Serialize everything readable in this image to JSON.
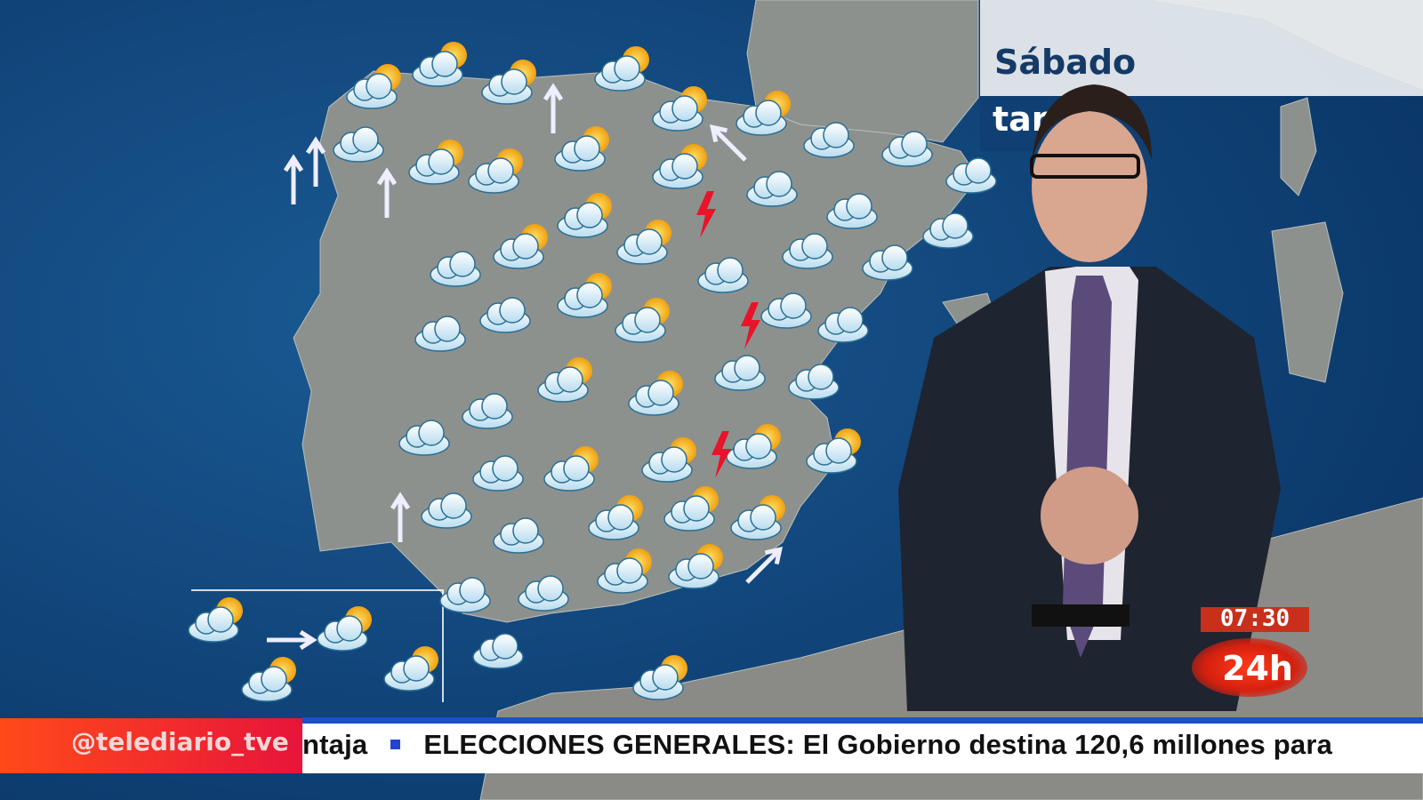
{
  "broadcast": {
    "day_title": "Sábado",
    "period_partial": "tar",
    "clock": "07:30",
    "channel_logo": "24h",
    "social_handle": "@telediario_tve"
  },
  "ticker": {
    "prev_fragment": "ntaja",
    "headline": "ELECCIONES GENERALES: El Gobierno destina 120,6 millones para"
  },
  "map": {
    "region": "Peninsula Iberica y Canarias",
    "icon_kinds": [
      "cloud-sun-icon",
      "cloud-icon",
      "cloud-rain-icon",
      "lightning-icon",
      "wind-arrow-icon"
    ],
    "colors": {
      "sea": "#0d3f73",
      "land": "#8e9490",
      "accent_red": "#e8143a",
      "ticker_blue": "#1d4fc9"
    }
  }
}
